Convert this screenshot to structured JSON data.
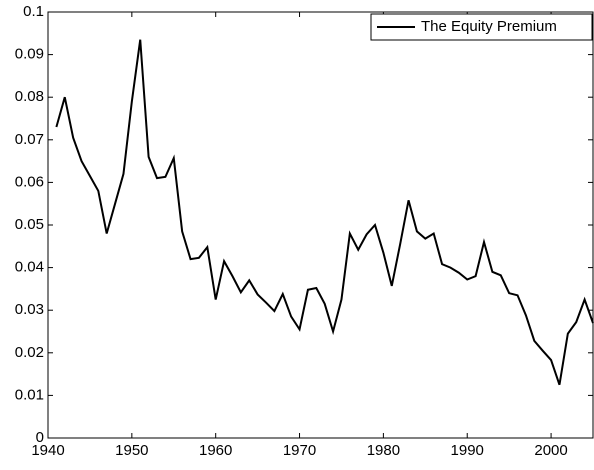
{
  "chart_data": {
    "type": "line",
    "x": [
      1941,
      1942,
      1943,
      1944,
      1945,
      1946,
      1947,
      1948,
      1949,
      1950,
      1951,
      1952,
      1953,
      1954,
      1955,
      1956,
      1957,
      1958,
      1959,
      1960,
      1961,
      1962,
      1963,
      1964,
      1965,
      1966,
      1967,
      1968,
      1969,
      1970,
      1971,
      1972,
      1973,
      1974,
      1975,
      1976,
      1977,
      1978,
      1979,
      1980,
      1981,
      1982,
      1983,
      1984,
      1985,
      1986,
      1987,
      1988,
      1989,
      1990,
      1991,
      1992,
      1993,
      1994,
      1995,
      1996,
      1997,
      1998,
      1999,
      2000,
      2001,
      2002,
      2003,
      2004,
      2005
    ],
    "series": [
      {
        "name": "The Equity Premium",
        "color": "#000000",
        "values": [
          0.073,
          0.08,
          0.0705,
          0.065,
          0.0615,
          0.058,
          0.048,
          0.055,
          0.062,
          0.079,
          0.0935,
          0.066,
          0.061,
          0.0613,
          0.0657,
          0.0485,
          0.042,
          0.0423,
          0.0448,
          0.0325,
          0.0415,
          0.038,
          0.0342,
          0.037,
          0.0337,
          0.0318,
          0.0298,
          0.0338,
          0.0285,
          0.0255,
          0.0348,
          0.0352,
          0.0315,
          0.025,
          0.0325,
          0.048,
          0.0442,
          0.0478,
          0.05,
          0.0435,
          0.0357,
          0.0455,
          0.0558,
          0.0485,
          0.0468,
          0.048,
          0.0408,
          0.04,
          0.0388,
          0.0372,
          0.038,
          0.046,
          0.039,
          0.0382,
          0.034,
          0.0335,
          0.0288,
          0.0228,
          0.0205,
          0.0183,
          0.0125,
          0.0245,
          0.0272,
          0.0325,
          0.027
        ]
      }
    ],
    "xlim": [
      1940,
      2005
    ],
    "xticks": [
      1940,
      1950,
      1960,
      1970,
      1980,
      1990,
      2000
    ],
    "ylim": [
      0,
      0.1
    ],
    "yticks": [
      0,
      0.01,
      0.02,
      0.03,
      0.04,
      0.05,
      0.06,
      0.07,
      0.08,
      0.09,
      0.1
    ],
    "grid": false,
    "legend": "upper-right"
  }
}
